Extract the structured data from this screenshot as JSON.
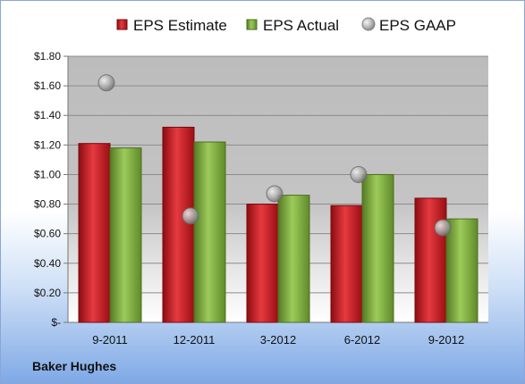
{
  "company": "Baker Hughes",
  "colors": {
    "estimate": "#c0141c",
    "actual": "#7aa83c",
    "gaap": "#9a9a9a"
  },
  "chart_data": {
    "type": "bar",
    "categories": [
      "9-2011",
      "12-2011",
      "3-2012",
      "6-2012",
      "9-2012"
    ],
    "series": [
      {
        "name": "EPS Estimate",
        "type": "bar",
        "values": [
          1.21,
          1.32,
          0.8,
          0.79,
          0.84
        ]
      },
      {
        "name": "EPS Actual",
        "type": "bar",
        "values": [
          1.18,
          1.22,
          0.86,
          1.0,
          0.7
        ]
      },
      {
        "name": "EPS GAAP",
        "type": "scatter",
        "values": [
          1.62,
          0.72,
          0.87,
          1.0,
          0.64
        ]
      }
    ],
    "ylim": [
      0,
      1.8
    ],
    "yticks": [
      0,
      0.2,
      0.4,
      0.6,
      0.8,
      1.0,
      1.2,
      1.4,
      1.6,
      1.8
    ],
    "ytick_labels": [
      "$-",
      "$0.20",
      "$0.40",
      "$0.60",
      "$0.80",
      "$1.00",
      "$1.20",
      "$1.40",
      "$1.60",
      "$1.80"
    ],
    "grid": true,
    "legend_position": "top"
  }
}
